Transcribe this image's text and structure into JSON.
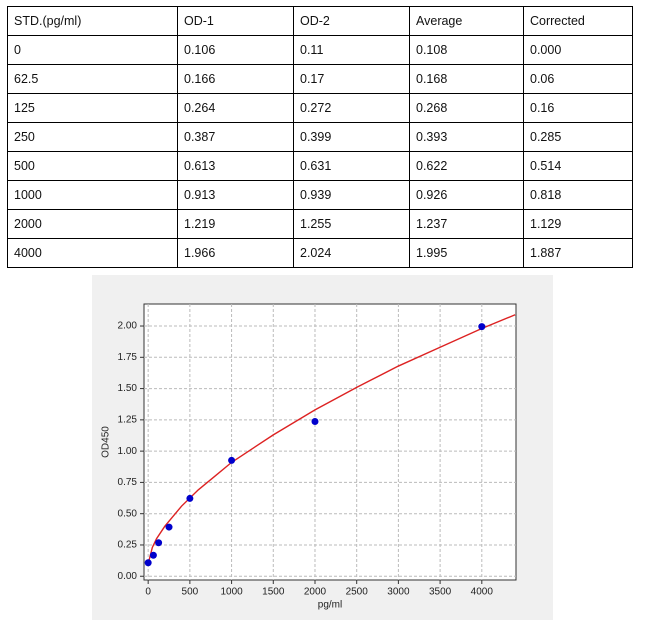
{
  "table": {
    "header": [
      "STD.(pg/ml)",
      "OD-1",
      "OD-2",
      "Average",
      "Corrected"
    ],
    "rows": [
      [
        "0",
        "0.106",
        "0.11",
        "0.108",
        "0.000"
      ],
      [
        "62.5",
        "0.166",
        "0.17",
        "0.168",
        "0.06"
      ],
      [
        "125",
        "0.264",
        "0.272",
        "0.268",
        "0.16"
      ],
      [
        "250",
        "0.387",
        "0.399",
        "0.393",
        "0.285"
      ],
      [
        "500",
        "0.613",
        "0.631",
        "0.622",
        "0.514"
      ],
      [
        "1000",
        "0.913",
        "0.939",
        "0.926",
        "0.818"
      ],
      [
        "2000",
        "1.219",
        "1.255",
        "1.237",
        "1.129"
      ],
      [
        "4000",
        "1.966",
        "2.024",
        "1.995",
        "1.887"
      ]
    ]
  },
  "chart_data": {
    "type": "scatter",
    "xlabel": "pg/ml",
    "ylabel": "OD450",
    "grid": true,
    "xlim": [
      -50,
      4410
    ],
    "ylim": [
      -0.03,
      2.176
    ],
    "xticks": [
      0,
      500,
      1000,
      1500,
      2000,
      2500,
      3000,
      3500,
      4000
    ],
    "yticks": [
      {
        "value": 0,
        "label": "0.00"
      },
      {
        "value": 0.25,
        "label": "0.25"
      },
      {
        "value": 0.5,
        "label": "0.50"
      },
      {
        "value": 0.75,
        "label": "0.75"
      },
      {
        "value": 1,
        "label": "1.00"
      },
      {
        "value": 1.25,
        "label": "1.25"
      },
      {
        "value": 1.5,
        "label": "1.50"
      },
      {
        "value": 1.75,
        "label": "1.75"
      },
      {
        "value": 2,
        "label": "2.00"
      }
    ],
    "series": [
      {
        "type": "scatter",
        "color": "#0000cc",
        "x": [
          0,
          62.5,
          125,
          250,
          500,
          1000,
          2000,
          4000
        ],
        "values": [
          0.108,
          0.168,
          0.268,
          0.393,
          0.622,
          0.926,
          1.237,
          1.995
        ]
      },
      {
        "type": "line",
        "color": "#dd2222",
        "x": [
          0,
          50,
          100,
          200,
          400,
          600,
          800,
          1000,
          1500,
          2000,
          2500,
          3000,
          3500,
          4000,
          4400
        ],
        "values": [
          0.1,
          0.23,
          0.3,
          0.4,
          0.56,
          0.69,
          0.8,
          0.91,
          1.13,
          1.33,
          1.51,
          1.68,
          1.83,
          1.98,
          2.09
        ]
      }
    ]
  }
}
